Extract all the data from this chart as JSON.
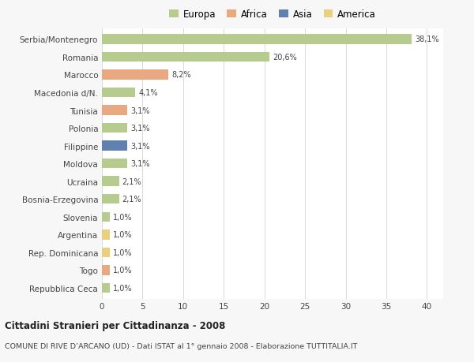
{
  "categories": [
    "Serbia/Montenegro",
    "Romania",
    "Marocco",
    "Macedonia d/N.",
    "Tunisia",
    "Polonia",
    "Filippine",
    "Moldova",
    "Ucraina",
    "Bosnia-Erzegovina",
    "Slovenia",
    "Argentina",
    "Rep. Dominicana",
    "Togo",
    "Repubblica Ceca"
  ],
  "values": [
    38.1,
    20.6,
    8.2,
    4.1,
    3.1,
    3.1,
    3.1,
    3.1,
    2.1,
    2.1,
    1.0,
    1.0,
    1.0,
    1.0,
    1.0
  ],
  "labels": [
    "38,1%",
    "20,6%",
    "8,2%",
    "4,1%",
    "3,1%",
    "3,1%",
    "3,1%",
    "3,1%",
    "2,1%",
    "2,1%",
    "1,0%",
    "1,0%",
    "1,0%",
    "1,0%",
    "1,0%"
  ],
  "continent": [
    "Europa",
    "Europa",
    "Africa",
    "Europa",
    "Africa",
    "Europa",
    "Asia",
    "Europa",
    "Europa",
    "Europa",
    "Europa",
    "America",
    "America",
    "Africa",
    "Europa"
  ],
  "colors": {
    "Europa": "#b5cc8e",
    "Africa": "#e8a882",
    "Asia": "#6080b0",
    "America": "#e8d080"
  },
  "xlim": [
    0,
    42
  ],
  "xticks": [
    0,
    5,
    10,
    15,
    20,
    25,
    30,
    35,
    40
  ],
  "title": "Cittadini Stranieri per Cittadinanza - 2008",
  "subtitle": "COMUNE DI RIVE D’ARCANO (UD) - Dati ISTAT al 1° gennaio 2008 - Elaborazione TUTTITALIA.IT",
  "bg_color": "#f7f7f7",
  "bar_bg_color": "#ffffff",
  "grid_color": "#d8d8d8",
  "text_color": "#444444",
  "legend_order": [
    "Europa",
    "Africa",
    "Asia",
    "America"
  ]
}
